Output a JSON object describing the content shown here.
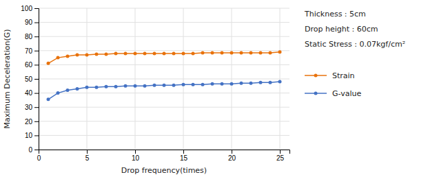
{
  "chart_data": {
    "type": "line",
    "x": [
      1,
      2,
      3,
      4,
      5,
      6,
      7,
      8,
      9,
      10,
      11,
      12,
      13,
      14,
      15,
      16,
      17,
      18,
      19,
      20,
      21,
      22,
      23,
      24,
      25
    ],
    "series": [
      {
        "name": "Strain",
        "color": "#E8720C",
        "marker": "circle",
        "values": [
          61,
          65,
          66,
          67,
          67,
          67.5,
          67.5,
          68,
          68,
          68,
          68,
          68,
          68,
          68,
          68,
          68,
          68.5,
          68.5,
          68.5,
          68.5,
          68.5,
          68.5,
          68.5,
          68.5,
          69
        ]
      },
      {
        "name": "G-value",
        "color": "#4472C4",
        "marker": "circle",
        "values": [
          35.5,
          40,
          42,
          43,
          44,
          44,
          44.5,
          44.5,
          45,
          45,
          45,
          45.5,
          45.5,
          45.5,
          46,
          46,
          46,
          46.5,
          46.5,
          46.5,
          47,
          47,
          47.5,
          47.5,
          48
        ]
      }
    ],
    "xlabel": "Drop frequency(times)",
    "ylabel": "Maximum Deceleration(G)",
    "annotations": [
      "Thickness : 5cm",
      "Drop height : 60cm",
      "Static Stress : 0.07kgf/cm²"
    ],
    "xlim": [
      0,
      26
    ],
    "ylim": [
      0,
      100
    ],
    "xticks": [
      0,
      5,
      10,
      15,
      20,
      25
    ],
    "yticks": [
      0,
      10,
      20,
      30,
      40,
      50,
      60,
      70,
      80,
      90,
      100
    ],
    "grid": true,
    "legend": "right"
  }
}
